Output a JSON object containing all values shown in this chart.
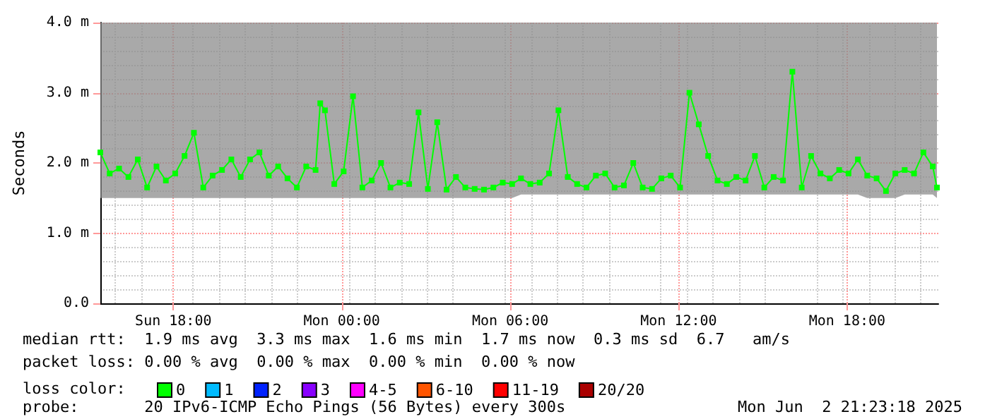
{
  "chart_data": {
    "type": "line",
    "ylabel": "Seconds",
    "legend_title": "loss color:",
    "legend": "bottom",
    "grid": true,
    "marker": "square",
    "line_style": "solid",
    "xlim": [
      "2025-06-01T15:24",
      "2025-06-02T21:15"
    ],
    "xticks": [
      {
        "value": "2025-06-01T18:00",
        "label": "Sun 18:00"
      },
      {
        "value": "2025-06-02T00:00",
        "label": "Mon 00:00"
      },
      {
        "value": "2025-06-02T06:00",
        "label": "Mon 06:00"
      },
      {
        "value": "2025-06-02T12:00",
        "label": "Mon 12:00"
      },
      {
        "value": "2025-06-02T18:00",
        "label": "Mon 18:00"
      }
    ],
    "ylim": [
      0,
      4
    ],
    "yticks": [
      {
        "value": 0,
        "label": "0.0"
      },
      {
        "value": 1,
        "label": "1.0 m"
      },
      {
        "value": 2,
        "label": "2.0 m"
      },
      {
        "value": 3,
        "label": "3.0 m"
      },
      {
        "value": 4,
        "label": "4.0 m"
      }
    ],
    "x": [
      "2025-06-01T15:24",
      "2025-06-01T15:44",
      "2025-06-01T16:04",
      "2025-06-01T16:24",
      "2025-06-01T16:44",
      "2025-06-01T17:04",
      "2025-06-01T17:24",
      "2025-06-01T17:44",
      "2025-06-01T18:04",
      "2025-06-01T18:24",
      "2025-06-01T18:44",
      "2025-06-01T19:04",
      "2025-06-01T19:24",
      "2025-06-01T19:44",
      "2025-06-01T20:04",
      "2025-06-01T20:24",
      "2025-06-01T20:44",
      "2025-06-01T21:04",
      "2025-06-01T21:24",
      "2025-06-01T21:44",
      "2025-06-01T22:04",
      "2025-06-01T22:24",
      "2025-06-01T22:44",
      "2025-06-01T23:04",
      "2025-06-01T23:14",
      "2025-06-01T23:24",
      "2025-06-01T23:44",
      "2025-06-02T00:04",
      "2025-06-02T00:24",
      "2025-06-02T00:44",
      "2025-06-02T01:04",
      "2025-06-02T01:24",
      "2025-06-02T01:44",
      "2025-06-02T02:04",
      "2025-06-02T02:24",
      "2025-06-02T02:44",
      "2025-06-02T03:04",
      "2025-06-02T03:24",
      "2025-06-02T03:44",
      "2025-06-02T04:04",
      "2025-06-02T04:24",
      "2025-06-02T04:44",
      "2025-06-02T05:04",
      "2025-06-02T05:24",
      "2025-06-02T05:44",
      "2025-06-02T06:04",
      "2025-06-02T06:23",
      "2025-06-02T06:43",
      "2025-06-02T07:03",
      "2025-06-02T07:23",
      "2025-06-02T07:43",
      "2025-06-02T08:03",
      "2025-06-02T08:23",
      "2025-06-02T08:43",
      "2025-06-02T09:03",
      "2025-06-02T09:23",
      "2025-06-02T09:43",
      "2025-06-02T10:03",
      "2025-06-02T10:23",
      "2025-06-02T10:43",
      "2025-06-02T11:03",
      "2025-06-02T11:23",
      "2025-06-02T11:43",
      "2025-06-02T12:03",
      "2025-06-02T12:23",
      "2025-06-02T12:43",
      "2025-06-02T13:03",
      "2025-06-02T13:23",
      "2025-06-02T13:43",
      "2025-06-02T14:03",
      "2025-06-02T14:23",
      "2025-06-02T14:43",
      "2025-06-02T15:03",
      "2025-06-02T15:23",
      "2025-06-02T15:43",
      "2025-06-02T16:03",
      "2025-06-02T16:23",
      "2025-06-02T16:43",
      "2025-06-02T17:03",
      "2025-06-02T17:23",
      "2025-06-02T17:43",
      "2025-06-02T18:03",
      "2025-06-02T18:23",
      "2025-06-02T18:43",
      "2025-06-02T19:03",
      "2025-06-02T19:23",
      "2025-06-02T19:43",
      "2025-06-02T20:03",
      "2025-06-02T20:23",
      "2025-06-02T20:43",
      "2025-06-02T21:03",
      "2025-06-02T21:12"
    ],
    "series": [
      {
        "name": "0",
        "color": "#00ff00",
        "values": [
          2.15,
          1.85,
          1.92,
          1.8,
          2.05,
          1.65,
          1.95,
          1.75,
          1.85,
          2.1,
          2.43,
          1.65,
          1.82,
          1.9,
          2.05,
          1.8,
          2.05,
          2.15,
          1.82,
          1.95,
          1.78,
          1.65,
          1.95,
          1.9,
          2.85,
          2.75,
          1.7,
          1.88,
          2.95,
          1.65,
          1.75,
          2.0,
          1.65,
          1.72,
          1.7,
          2.72,
          1.63,
          2.58,
          1.62,
          1.8,
          1.65,
          1.63,
          1.62,
          1.65,
          1.72,
          1.7,
          1.78,
          1.7,
          1.72,
          1.85,
          2.75,
          1.8,
          1.7,
          1.65,
          1.82,
          1.85,
          1.65,
          1.68,
          2.0,
          1.65,
          1.63,
          1.78,
          1.82,
          1.65,
          3.0,
          2.55,
          2.1,
          1.75,
          1.7,
          1.8,
          1.75,
          2.1,
          1.65,
          1.8,
          1.75,
          3.3,
          1.65,
          2.1,
          1.85,
          1.78,
          1.9,
          1.85,
          2.05,
          1.82,
          1.78,
          1.6,
          1.85,
          1.9,
          1.85,
          2.15,
          1.95,
          1.65
        ],
        "lower": [
          1.5,
          1.5,
          1.5,
          1.5,
          1.5,
          1.5,
          1.5,
          1.5,
          1.5,
          1.5,
          1.5,
          1.5,
          1.5,
          1.5,
          1.5,
          1.5,
          1.5,
          1.5,
          1.5,
          1.5,
          1.5,
          1.5,
          1.5,
          1.5,
          1.5,
          1.5,
          1.5,
          1.5,
          1.5,
          1.5,
          1.5,
          1.5,
          1.5,
          1.5,
          1.5,
          1.5,
          1.5,
          1.5,
          1.5,
          1.5,
          1.5,
          1.5,
          1.5,
          1.5,
          1.5,
          1.5,
          1.55,
          1.55,
          1.55,
          1.55,
          1.55,
          1.55,
          1.55,
          1.55,
          1.55,
          1.55,
          1.55,
          1.55,
          1.55,
          1.55,
          1.55,
          1.55,
          1.55,
          1.55,
          1.55,
          1.55,
          1.55,
          1.55,
          1.55,
          1.55,
          1.55,
          1.55,
          1.55,
          1.55,
          1.55,
          1.55,
          1.55,
          1.55,
          1.55,
          1.55,
          1.55,
          1.55,
          1.55,
          1.5,
          1.5,
          1.5,
          1.5,
          1.55,
          1.55,
          1.55,
          1.55,
          1.5
        ],
        "upper": [
          4,
          4,
          4,
          4,
          4,
          4,
          4,
          4,
          4,
          4,
          4,
          4,
          4,
          4,
          4,
          4,
          4,
          4,
          4,
          4,
          4,
          4,
          4,
          4,
          4,
          4,
          4,
          4,
          4,
          4,
          4,
          4,
          4,
          4,
          4,
          4,
          4,
          4,
          4,
          4,
          4,
          4,
          4,
          4,
          4,
          4,
          4,
          4,
          4,
          4,
          4,
          4,
          4,
          4,
          4,
          4,
          4,
          4,
          4,
          4,
          4,
          4,
          4,
          4,
          4,
          4,
          4,
          4,
          4,
          4,
          4,
          4,
          4,
          4,
          4,
          4,
          4,
          4,
          4,
          4,
          4,
          4,
          4,
          4,
          4,
          4,
          4,
          4,
          4,
          4,
          4,
          4
        ]
      },
      {
        "name": "1",
        "color": "#00bbff",
        "values": [
          null,
          null,
          null,
          null,
          null,
          null,
          null,
          null,
          null,
          null,
          null,
          null,
          null,
          null,
          null,
          null,
          null,
          null,
          null,
          null,
          null,
          null,
          null,
          null,
          null,
          null,
          null,
          null,
          null,
          null,
          null,
          null,
          null,
          null,
          null,
          null,
          null,
          null,
          null,
          null,
          null,
          null,
          null,
          null,
          null,
          null,
          null,
          null,
          null,
          null,
          null,
          null,
          null,
          null,
          null,
          null,
          null,
          null,
          null,
          null,
          null,
          null,
          null,
          null,
          null,
          null,
          null,
          null,
          null,
          null,
          null,
          null,
          null,
          null,
          null,
          null,
          null,
          null,
          null,
          null,
          null,
          null,
          null,
          null,
          null,
          null,
          null,
          null,
          null,
          null,
          null,
          null
        ]
      },
      {
        "name": "2",
        "color": "#0022ff",
        "values": [
          null,
          null,
          null,
          null,
          null,
          null,
          null,
          null,
          null,
          null,
          null,
          null,
          null,
          null,
          null,
          null,
          null,
          null,
          null,
          null,
          null,
          null,
          null,
          null,
          null,
          null,
          null,
          null,
          null,
          null,
          null,
          null,
          null,
          null,
          null,
          null,
          null,
          null,
          null,
          null,
          null,
          null,
          null,
          null,
          null,
          null,
          null,
          null,
          null,
          null,
          null,
          null,
          null,
          null,
          null,
          null,
          null,
          null,
          null,
          null,
          null,
          null,
          null,
          null,
          null,
          null,
          null,
          null,
          null,
          null,
          null,
          null,
          null,
          null,
          null,
          null,
          null,
          null,
          null,
          null,
          null,
          null,
          null,
          null,
          null,
          null,
          null,
          null,
          null,
          null,
          null,
          null
        ]
      },
      {
        "name": "3",
        "color": "#8800ff",
        "values": [
          null,
          null,
          null,
          null,
          null,
          null,
          null,
          null,
          null,
          null,
          null,
          null,
          null,
          null,
          null,
          null,
          null,
          null,
          null,
          null,
          null,
          null,
          null,
          null,
          null,
          null,
          null,
          null,
          null,
          null,
          null,
          null,
          null,
          null,
          null,
          null,
          null,
          null,
          null,
          null,
          null,
          null,
          null,
          null,
          null,
          null,
          null,
          null,
          null,
          null,
          null,
          null,
          null,
          null,
          null,
          null,
          null,
          null,
          null,
          null,
          null,
          null,
          null,
          null,
          null,
          null,
          null,
          null,
          null,
          null,
          null,
          null,
          null,
          null,
          null,
          null,
          null,
          null,
          null,
          null,
          null,
          null,
          null,
          null,
          null,
          null,
          null,
          null,
          null,
          null,
          null,
          null
        ]
      },
      {
        "name": "4-5",
        "color": "#ff00ff",
        "values": [
          null,
          null,
          null,
          null,
          null,
          null,
          null,
          null,
          null,
          null,
          null,
          null,
          null,
          null,
          null,
          null,
          null,
          null,
          null,
          null,
          null,
          null,
          null,
          null,
          null,
          null,
          null,
          null,
          null,
          null,
          null,
          null,
          null,
          null,
          null,
          null,
          null,
          null,
          null,
          null,
          null,
          null,
          null,
          null,
          null,
          null,
          null,
          null,
          null,
          null,
          null,
          null,
          null,
          null,
          null,
          null,
          null,
          null,
          null,
          null,
          null,
          null,
          null,
          null,
          null,
          null,
          null,
          null,
          null,
          null,
          null,
          null,
          null,
          null,
          null,
          null,
          null,
          null,
          null,
          null,
          null,
          null,
          null,
          null,
          null,
          null,
          null,
          null,
          null,
          null,
          null,
          null
        ]
      },
      {
        "name": "6-10",
        "color": "#ff5500",
        "values": [
          null,
          null,
          null,
          null,
          null,
          null,
          null,
          null,
          null,
          null,
          null,
          null,
          null,
          null,
          null,
          null,
          null,
          null,
          null,
          null,
          null,
          null,
          null,
          null,
          null,
          null,
          null,
          null,
          null,
          null,
          null,
          null,
          null,
          null,
          null,
          null,
          null,
          null,
          null,
          null,
          null,
          null,
          null,
          null,
          null,
          null,
          null,
          null,
          null,
          null,
          null,
          null,
          null,
          null,
          null,
          null,
          null,
          null,
          null,
          null,
          null,
          null,
          null,
          null,
          null,
          null,
          null,
          null,
          null,
          null,
          null,
          null,
          null,
          null,
          null,
          null,
          null,
          null,
          null,
          null,
          null,
          null,
          null,
          null,
          null,
          null,
          null,
          null,
          null,
          null,
          null,
          null
        ]
      },
      {
        "name": "11-19",
        "color": "#ff0000",
        "values": [
          null,
          null,
          null,
          null,
          null,
          null,
          null,
          null,
          null,
          null,
          null,
          null,
          null,
          null,
          null,
          null,
          null,
          null,
          null,
          null,
          null,
          null,
          null,
          null,
          null,
          null,
          null,
          null,
          null,
          null,
          null,
          null,
          null,
          null,
          null,
          null,
          null,
          null,
          null,
          null,
          null,
          null,
          null,
          null,
          null,
          null,
          null,
          null,
          null,
          null,
          null,
          null,
          null,
          null,
          null,
          null,
          null,
          null,
          null,
          null,
          null,
          null,
          null,
          null,
          null,
          null,
          null,
          null,
          null,
          null,
          null,
          null,
          null,
          null,
          null,
          null,
          null,
          null,
          null,
          null,
          null,
          null,
          null,
          null,
          null,
          null,
          null,
          null,
          null,
          null,
          null,
          null
        ]
      },
      {
        "name": "20/20",
        "color": "#aa0000",
        "values": [
          null,
          null,
          null,
          null,
          null,
          null,
          null,
          null,
          null,
          null,
          null,
          null,
          null,
          null,
          null,
          null,
          null,
          null,
          null,
          null,
          null,
          null,
          null,
          null,
          null,
          null,
          null,
          null,
          null,
          null,
          null,
          null,
          null,
          null,
          null,
          null,
          null,
          null,
          null,
          null,
          null,
          null,
          null,
          null,
          null,
          null,
          null,
          null,
          null,
          null,
          null,
          null,
          null,
          null,
          null,
          null,
          null,
          null,
          null,
          null,
          null,
          null,
          null,
          null,
          null,
          null,
          null,
          null,
          null,
          null,
          null,
          null,
          null,
          null,
          null,
          null,
          null,
          null,
          null,
          null,
          null,
          null,
          null,
          null,
          null,
          null,
          null,
          null,
          null,
          null,
          null,
          null
        ]
      }
    ],
    "annotations": [
      "median rtt:  1.9 ms avg  3.3 ms max  1.6 ms min  1.7 ms now  0.3 ms sd  6.7   am/s",
      "packet loss: 0.00 % avg  0.00 % max  0.00 % min  0.00 % now",
      "probe:       20 IPv6-ICMP Echo Pings (56 Bytes) every 300s",
      "Mon Jun  2 21:23:18 2025"
    ]
  }
}
